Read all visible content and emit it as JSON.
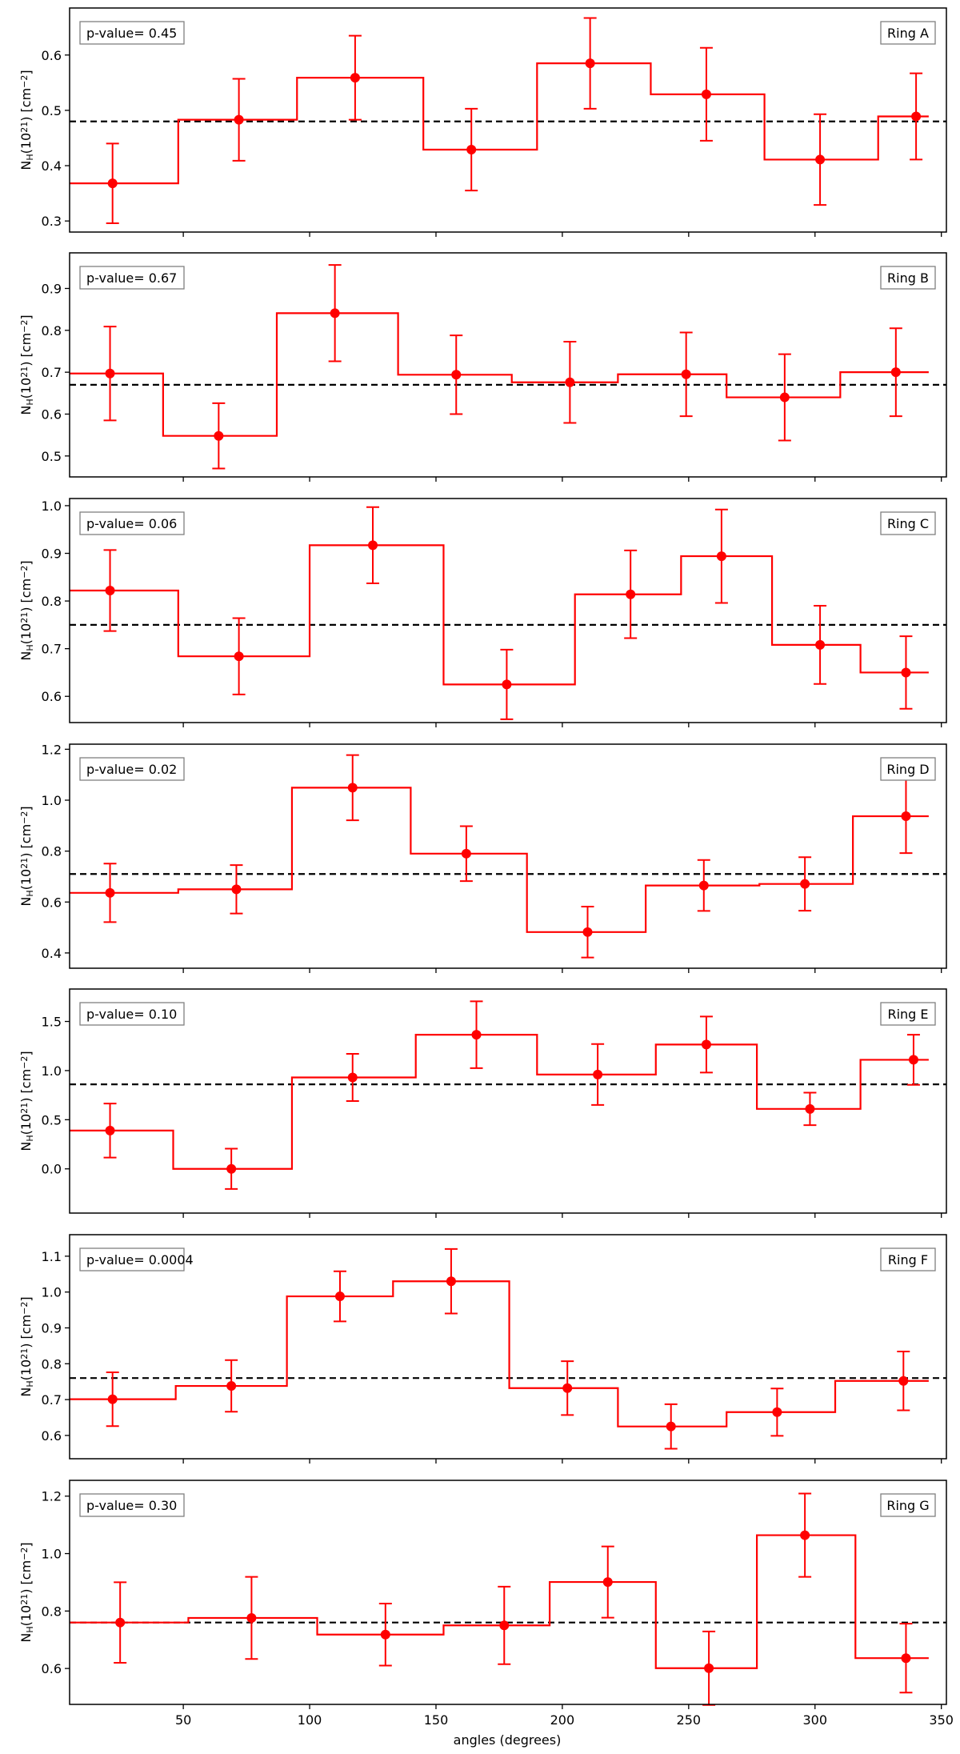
{
  "figure": {
    "xlabel": "angles (degrees)",
    "ylabel_main": "N",
    "ylabel_sub": "H",
    "ylabel_mid": "(10",
    "ylabel_sup": "21",
    "ylabel_post": ") [cm",
    "ylabel_sup2": "−2",
    "ylabel_end": "]",
    "x_ticks": [
      50,
      100,
      150,
      200,
      250,
      300,
      350
    ],
    "xlim": [
      5,
      352
    ],
    "colors": {
      "data": "#ff0000",
      "mean_line": "#000000",
      "axes": "#000000",
      "box_edge": "#808080"
    }
  },
  "chart_data": [
    {
      "type": "step-errorbar",
      "ring_label": "Ring A",
      "p_value_text": "p-value= 0.45",
      "mean": 0.48,
      "ylim": [
        0.28,
        0.685
      ],
      "y_ticks": [
        0.3,
        0.4,
        0.5,
        0.6
      ],
      "y_tick_labels": [
        "0.3",
        "0.4",
        "0.5",
        "0.6"
      ],
      "bins": [
        5,
        48,
        95,
        145,
        190,
        235,
        280,
        325,
        345
      ],
      "points": [
        {
          "x": 22,
          "y": 0.368,
          "err": 0.072
        },
        {
          "x": 72,
          "y": 0.483,
          "err": 0.074
        },
        {
          "x": 118,
          "y": 0.559,
          "err": 0.076
        },
        {
          "x": 164,
          "y": 0.429,
          "err": 0.074
        },
        {
          "x": 211,
          "y": 0.585,
          "err": 0.082
        },
        {
          "x": 257,
          "y": 0.529,
          "err": 0.084
        },
        {
          "x": 302,
          "y": 0.411,
          "err": 0.082
        },
        {
          "x": 340,
          "y": 0.489,
          "err": 0.078
        }
      ]
    },
    {
      "type": "step-errorbar",
      "ring_label": "Ring B",
      "p_value_text": "p-value= 0.67",
      "mean": 0.67,
      "ylim": [
        0.45,
        0.985
      ],
      "y_ticks": [
        0.5,
        0.6,
        0.7,
        0.8,
        0.9
      ],
      "y_tick_labels": [
        "0.5",
        "0.6",
        "0.7",
        "0.8",
        "0.9"
      ],
      "bins": [
        5,
        42,
        87,
        135,
        180,
        222,
        265,
        310,
        345
      ],
      "points": [
        {
          "x": 21,
          "y": 0.697,
          "err": 0.112
        },
        {
          "x": 64,
          "y": 0.548,
          "err": 0.078
        },
        {
          "x": 110,
          "y": 0.841,
          "err": 0.115
        },
        {
          "x": 158,
          "y": 0.694,
          "err": 0.094
        },
        {
          "x": 203,
          "y": 0.676,
          "err": 0.097
        },
        {
          "x": 249,
          "y": 0.695,
          "err": 0.1
        },
        {
          "x": 288,
          "y": 0.64,
          "err": 0.103
        },
        {
          "x": 332,
          "y": 0.7,
          "err": 0.105
        }
      ]
    },
    {
      "type": "step-errorbar",
      "ring_label": "Ring C",
      "p_value_text": "p-value= 0.06",
      "mean": 0.75,
      "ylim": [
        0.545,
        1.015
      ],
      "y_ticks": [
        0.6,
        0.7,
        0.8,
        0.9,
        1.0
      ],
      "y_tick_labels": [
        "0.6",
        "0.7",
        "0.8",
        "0.9",
        "1.0"
      ],
      "bins": [
        5,
        48,
        100,
        153,
        205,
        247,
        283,
        318,
        345
      ],
      "points": [
        {
          "x": 21,
          "y": 0.822,
          "err": 0.085
        },
        {
          "x": 72,
          "y": 0.684,
          "err": 0.08
        },
        {
          "x": 125,
          "y": 0.917,
          "err": 0.08
        },
        {
          "x": 178,
          "y": 0.625,
          "err": 0.073
        },
        {
          "x": 227,
          "y": 0.814,
          "err": 0.092
        },
        {
          "x": 263,
          "y": 0.894,
          "err": 0.098
        },
        {
          "x": 302,
          "y": 0.708,
          "err": 0.082
        },
        {
          "x": 336,
          "y": 0.65,
          "err": 0.076
        }
      ]
    },
    {
      "type": "step-errorbar",
      "ring_label": "Ring D",
      "p_value_text": "p-value= 0.02",
      "mean": 0.71,
      "ylim": [
        0.34,
        1.22
      ],
      "y_ticks": [
        0.4,
        0.6,
        0.8,
        1.0,
        1.2
      ],
      "y_tick_labels": [
        "0.4",
        "0.6",
        "0.8",
        "1.0",
        "1.2"
      ],
      "bins": [
        5,
        48,
        93,
        140,
        186,
        233,
        278,
        315,
        345
      ],
      "points": [
        {
          "x": 21,
          "y": 0.636,
          "err": 0.115
        },
        {
          "x": 71,
          "y": 0.65,
          "err": 0.095
        },
        {
          "x": 117,
          "y": 1.049,
          "err": 0.128
        },
        {
          "x": 162,
          "y": 0.79,
          "err": 0.108
        },
        {
          "x": 210,
          "y": 0.482,
          "err": 0.1
        },
        {
          "x": 256,
          "y": 0.665,
          "err": 0.1
        },
        {
          "x": 296,
          "y": 0.671,
          "err": 0.105
        },
        {
          "x": 336,
          "y": 0.937,
          "err": 0.145
        }
      ]
    },
    {
      "type": "step-errorbar",
      "ring_label": "Ring E",
      "p_value_text": "p-value= 0.10",
      "mean": 0.86,
      "ylim": [
        -0.45,
        1.83
      ],
      "y_ticks": [
        0.0,
        0.5,
        1.0,
        1.5
      ],
      "y_tick_labels": [
        "0.0",
        "0.5",
        "1.0",
        "1.5"
      ],
      "bins": [
        5,
        46,
        93,
        142,
        190,
        237,
        277,
        318,
        345
      ],
      "points": [
        {
          "x": 21,
          "y": 0.39,
          "err": 0.275
        },
        {
          "x": 69,
          "y": 0.0,
          "err": 0.205
        },
        {
          "x": 117,
          "y": 0.93,
          "err": 0.24
        },
        {
          "x": 166,
          "y": 1.365,
          "err": 0.34
        },
        {
          "x": 214,
          "y": 0.96,
          "err": 0.31
        },
        {
          "x": 257,
          "y": 1.265,
          "err": 0.285
        },
        {
          "x": 298,
          "y": 0.61,
          "err": 0.165
        },
        {
          "x": 339,
          "y": 1.11,
          "err": 0.255
        }
      ]
    },
    {
      "type": "step-errorbar",
      "ring_label": "Ring F",
      "p_value_text": "p-value= 0.0004",
      "mean": 0.76,
      "ylim": [
        0.535,
        1.16
      ],
      "y_ticks": [
        0.6,
        0.7,
        0.8,
        0.9,
        1.0,
        1.1
      ],
      "y_tick_labels": [
        "0.6",
        "0.7",
        "0.8",
        "0.9",
        "1.0",
        "1.1"
      ],
      "bins": [
        5,
        47,
        91,
        133,
        179,
        222,
        265,
        308,
        345
      ],
      "points": [
        {
          "x": 22,
          "y": 0.701,
          "err": 0.075
        },
        {
          "x": 69,
          "y": 0.738,
          "err": 0.072
        },
        {
          "x": 112,
          "y": 0.988,
          "err": 0.07
        },
        {
          "x": 156,
          "y": 1.03,
          "err": 0.09
        },
        {
          "x": 202,
          "y": 0.732,
          "err": 0.075
        },
        {
          "x": 243,
          "y": 0.625,
          "err": 0.062
        },
        {
          "x": 285,
          "y": 0.665,
          "err": 0.066
        },
        {
          "x": 335,
          "y": 0.752,
          "err": 0.082
        }
      ]
    },
    {
      "type": "step-errorbar",
      "ring_label": "Ring G",
      "p_value_text": "p-value= 0.30",
      "mean": 0.76,
      "ylim": [
        0.475,
        1.255
      ],
      "y_ticks": [
        0.6,
        0.8,
        1.0,
        1.2
      ],
      "y_tick_labels": [
        "0.6",
        "0.8",
        "1.0",
        "1.2"
      ],
      "bins": [
        5,
        52,
        103,
        153,
        195,
        237,
        277,
        316,
        345
      ],
      "points": [
        {
          "x": 25,
          "y": 0.76,
          "err": 0.14
        },
        {
          "x": 77,
          "y": 0.776,
          "err": 0.143
        },
        {
          "x": 130,
          "y": 0.718,
          "err": 0.108
        },
        {
          "x": 177,
          "y": 0.75,
          "err": 0.135
        },
        {
          "x": 218,
          "y": 0.901,
          "err": 0.124
        },
        {
          "x": 258,
          "y": 0.601,
          "err": 0.128
        },
        {
          "x": 296,
          "y": 1.064,
          "err": 0.145
        },
        {
          "x": 336,
          "y": 0.636,
          "err": 0.12
        }
      ]
    }
  ]
}
